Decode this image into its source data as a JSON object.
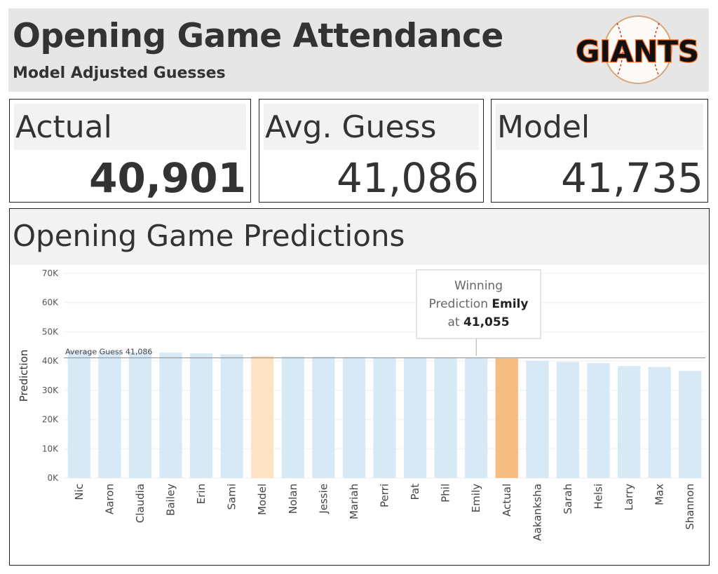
{
  "header": {
    "title": "Opening Game Attendance",
    "subtitle": "Model Adjusted Guesses",
    "logo_text": "GIANTS"
  },
  "kpis": {
    "actual": {
      "label": "Actual",
      "value": "40,901"
    },
    "avg_guess": {
      "label": "Avg. Guess",
      "value": "41,086"
    },
    "model": {
      "label": "Model",
      "value": "41,735"
    }
  },
  "chart_data": {
    "type": "bar",
    "title": "Opening Game Predictions",
    "xlabel": "",
    "ylabel": "Prediction",
    "ylim": [
      0,
      70000
    ],
    "yticks": [
      "0K",
      "10K",
      "20K",
      "30K",
      "40K",
      "50K",
      "60K",
      "70K"
    ],
    "grid": true,
    "categories": [
      "Nic",
      "Aaron",
      "Claudia",
      "Bailey",
      "Erin",
      "Sami",
      "Model",
      "Nolan",
      "Jessie",
      "Mariah",
      "Perri",
      "Pat",
      "Phil",
      "Emily",
      "Actual",
      "Aakanksha",
      "Sarah",
      "Helsi",
      "Larry",
      "Max",
      "Shannon"
    ],
    "values": [
      43500,
      43300,
      43100,
      42900,
      42600,
      42300,
      41735,
      41600,
      41500,
      41400,
      41300,
      41200,
      41100,
      41055,
      40901,
      40100,
      39700,
      39300,
      38300,
      38000,
      36600
    ],
    "colors": {
      "default": "#d8e9f6",
      "Model": "#fde3c4",
      "Actual": "#f5bd82"
    },
    "reference_line": {
      "label": "Average Guess",
      "value_label": "41,086",
      "value": 41086
    },
    "annotation": {
      "line1": "Winning",
      "line2_prefix": "Prediction",
      "name": "Emily",
      "line3_prefix": "at",
      "value_label": "41,055",
      "target": "Emily"
    }
  }
}
